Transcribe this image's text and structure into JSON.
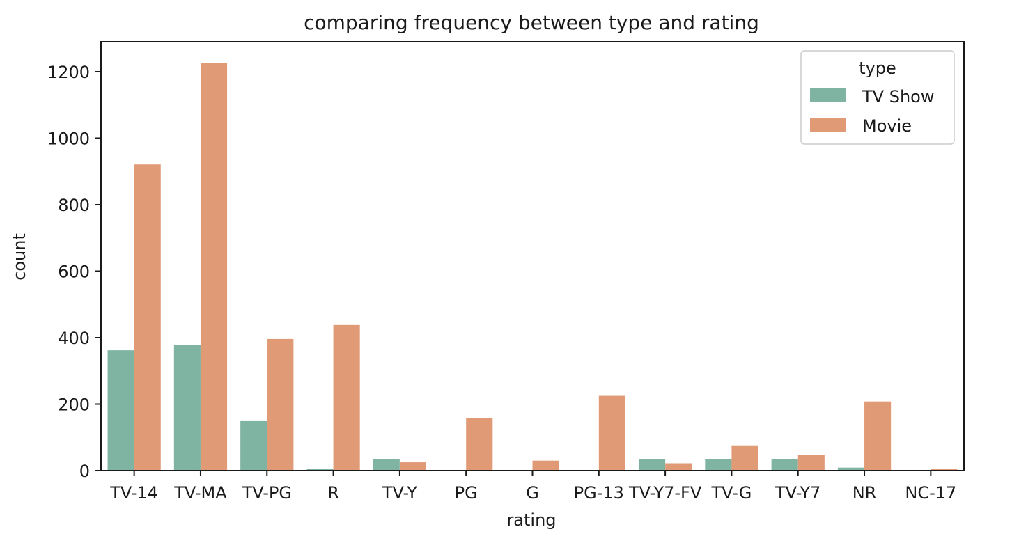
{
  "chart_data": {
    "type": "bar",
    "title": "comparing frequency between type and rating",
    "xlabel": "rating",
    "ylabel": "count",
    "categories": [
      "TV-14",
      "TV-MA",
      "TV-PG",
      "R",
      "TV-Y",
      "PG",
      "G",
      "PG-13",
      "TV-Y7-FV",
      "TV-G",
      "TV-Y7",
      "NR",
      "NC-17"
    ],
    "series": [
      {
        "name": "TV Show",
        "color": "#7fb4a3",
        "values": [
          362,
          378,
          151,
          5,
          34,
          0,
          0,
          0,
          34,
          34,
          34,
          9,
          0
        ]
      },
      {
        "name": "Movie",
        "color": "#e19a76",
        "values": [
          921,
          1227,
          396,
          438,
          25,
          158,
          30,
          225,
          22,
          76,
          47,
          208,
          5
        ]
      }
    ],
    "ylim": [
      0,
      1290
    ],
    "yticks": [
      0,
      200,
      400,
      600,
      800,
      1000,
      1200
    ],
    "legend": {
      "title": "type",
      "placement": "top-right"
    },
    "grid": false
  }
}
